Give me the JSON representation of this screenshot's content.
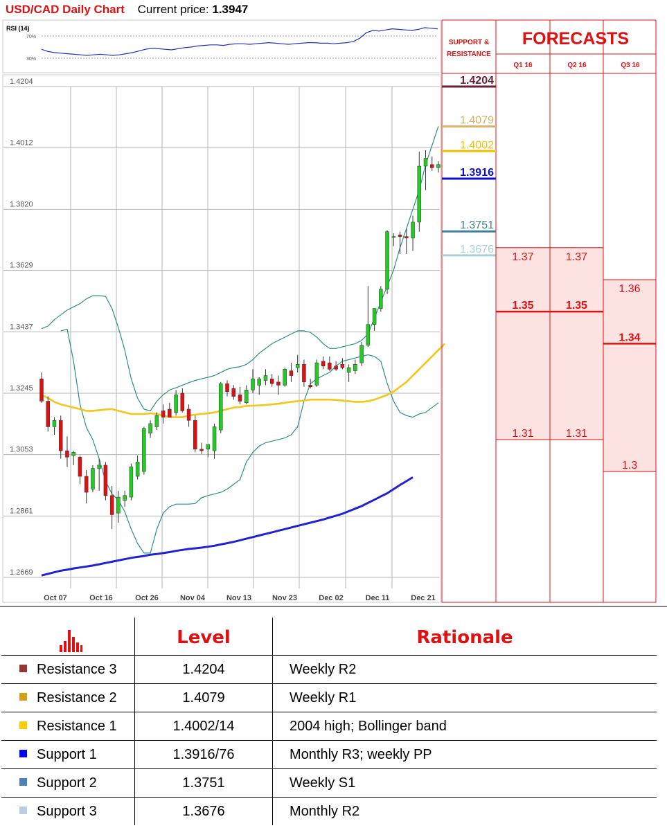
{
  "header": {
    "title": "USD/CAD Daily Chart",
    "price_label": "Current price:",
    "price_value": "1.3947"
  },
  "rsi": {
    "label": "RSI (14)",
    "level_high": "70%",
    "level_low": "30%"
  },
  "panel": {
    "support_resistance_title": [
      "SUPPORT &",
      "RESISTANCE"
    ],
    "forecasts_title": "FORECASTS",
    "quarters": [
      "Q1 16",
      "Q2 16",
      "Q3 16"
    ],
    "levels": [
      {
        "value": "1.4204",
        "color": "#6b1e3a"
      },
      {
        "value": "1.4079",
        "color": "#d9b264"
      },
      {
        "value": "1.4002",
        "color": "#f5c000"
      },
      {
        "value": "1.3916",
        "color": "#1010c8"
      },
      {
        "value": "1.3751",
        "color": "#3b8096"
      },
      {
        "value": "1.3676",
        "color": "#aad0d8"
      }
    ],
    "forecasts": [
      {
        "quarter": "Q1 16",
        "high": "1.37",
        "mid": "1.35",
        "low": "1.31"
      },
      {
        "quarter": "Q2 16",
        "high": "1.37",
        "mid": "1.35",
        "low": "1.31"
      },
      {
        "quarter": "Q3 16",
        "high": "1.36",
        "mid": "1.34",
        "low": "1.3"
      }
    ]
  },
  "chart_data": {
    "type": "candlestick",
    "title": "USD/CAD Daily Chart",
    "x_tick_labels": [
      "Oct 07",
      "Oct 16",
      "Oct 26",
      "Nov 04",
      "Nov 13",
      "Nov 23",
      "Dec 02",
      "Dec 11",
      "Dec 21"
    ],
    "y_tick_labels": [
      "1.4204",
      "1.4012",
      "1.3820",
      "1.3629",
      "1.3437",
      "1.3245",
      "1.3053",
      "1.2861",
      "1.2669"
    ],
    "ylim": [
      1.2669,
      1.4204
    ],
    "candles": [
      [
        1.329,
        1.331,
        1.3215,
        1.322
      ],
      [
        1.322,
        1.3235,
        1.3125,
        1.314
      ],
      [
        1.314,
        1.317,
        1.3115,
        1.316
      ],
      [
        1.316,
        1.3175,
        1.304,
        1.3065
      ],
      [
        1.3065,
        1.311,
        1.3015,
        1.3045
      ],
      [
        1.305,
        1.3065,
        1.302,
        1.306
      ],
      [
        1.3045,
        1.305,
        1.296,
        1.2985
      ],
      [
        1.2985,
        1.3005,
        1.29,
        1.2935
      ],
      [
        1.2945,
        1.302,
        1.2935,
        1.301
      ],
      [
        1.301,
        1.304,
        1.294,
        1.302
      ],
      [
        1.302,
        1.303,
        1.291,
        1.2925
      ],
      [
        1.2925,
        1.2955,
        1.282,
        1.2865
      ],
      [
        1.287,
        1.294,
        1.284,
        1.292
      ],
      [
        1.291,
        1.294,
        1.289,
        1.2925
      ],
      [
        1.292,
        1.3025,
        1.291,
        1.3015
      ],
      [
        1.2985,
        1.305,
        1.2975,
        1.303
      ],
      [
        1.3,
        1.314,
        1.299,
        1.3135
      ],
      [
        1.312,
        1.316,
        1.3105,
        1.315
      ],
      [
        1.314,
        1.3185,
        1.313,
        1.3175
      ],
      [
        1.319,
        1.321,
        1.315,
        1.317
      ],
      [
        1.3195,
        1.3215,
        1.317,
        1.317
      ],
      [
        1.3185,
        1.3255,
        1.3175,
        1.324
      ],
      [
        1.3245,
        1.326,
        1.3185,
        1.319
      ],
      [
        1.3195,
        1.321,
        1.314,
        1.316
      ],
      [
        1.316,
        1.3175,
        1.306,
        1.307
      ],
      [
        1.307,
        1.309,
        1.3055,
        1.3065
      ],
      [
        1.307,
        1.3085,
        1.3045,
        1.3085
      ],
      [
        1.3065,
        1.315,
        1.304,
        1.314
      ],
      [
        1.313,
        1.328,
        1.312,
        1.3275
      ],
      [
        1.3275,
        1.3285,
        1.3235,
        1.325
      ],
      [
        1.326,
        1.327,
        1.3225,
        1.3235
      ],
      [
        1.324,
        1.3265,
        1.321,
        1.322
      ],
      [
        1.3215,
        1.327,
        1.321,
        1.3255
      ],
      [
        1.3255,
        1.332,
        1.3245,
        1.329
      ],
      [
        1.327,
        1.3295,
        1.324,
        1.329
      ],
      [
        1.3285,
        1.332,
        1.327,
        1.33
      ],
      [
        1.329,
        1.3305,
        1.3265,
        1.3275
      ],
      [
        1.328,
        1.33,
        1.324,
        1.327
      ],
      [
        1.327,
        1.3325,
        1.3265,
        1.332
      ],
      [
        1.3315,
        1.334,
        1.328,
        1.33
      ],
      [
        1.3325,
        1.3365,
        1.331,
        1.3335
      ],
      [
        1.3335,
        1.335,
        1.3265,
        1.328
      ],
      [
        1.327,
        1.329,
        1.326,
        1.3265
      ],
      [
        1.327,
        1.335,
        1.3265,
        1.334
      ],
      [
        1.3345,
        1.336,
        1.332,
        1.333
      ],
      [
        1.334,
        1.336,
        1.3315,
        1.332
      ],
      [
        1.333,
        1.3345,
        1.3315,
        1.332
      ],
      [
        1.3335,
        1.3355,
        1.332,
        1.3325
      ],
      [
        1.331,
        1.3335,
        1.328,
        1.3325
      ],
      [
        1.3315,
        1.335,
        1.3305,
        1.3335
      ],
      [
        1.334,
        1.3405,
        1.333,
        1.3395
      ],
      [
        1.3395,
        1.358,
        1.339,
        1.346
      ],
      [
        1.346,
        1.351,
        1.344,
        1.351
      ],
      [
        1.351,
        1.358,
        1.35,
        1.357
      ],
      [
        1.357,
        1.3755,
        1.3555,
        1.375
      ],
      [
        1.3735,
        1.3745,
        1.3705,
        1.3735
      ],
      [
        1.374,
        1.375,
        1.368,
        1.3735
      ],
      [
        1.3735,
        1.376,
        1.368,
        1.373
      ],
      [
        1.373,
        1.38,
        1.369,
        1.378
      ],
      [
        1.378,
        1.4,
        1.375,
        1.3955
      ],
      [
        1.3955,
        1.4005,
        1.388,
        1.398
      ],
      [
        1.396,
        1.3985,
        1.394,
        1.395
      ],
      [
        1.395,
        1.397,
        1.3935,
        1.396
      ]
    ],
    "series": [
      {
        "values": [
          1.3447,
          1.3455,
          1.3475,
          1.349,
          1.3505,
          1.3515,
          1.3525,
          1.354,
          1.355,
          1.355,
          1.3548,
          1.351,
          1.345,
          1.338,
          1.329,
          1.323,
          1.3195,
          1.319,
          1.322,
          1.324,
          1.3255,
          1.3262,
          1.327,
          1.3278,
          1.3285,
          1.329,
          1.3295,
          1.33,
          1.331,
          1.332,
          1.3325,
          1.3328,
          1.3335,
          1.335,
          1.337,
          1.3385,
          1.34,
          1.341,
          1.342,
          1.343,
          1.344,
          1.344,
          1.3435,
          1.342,
          1.34,
          1.3385,
          1.3385,
          1.339,
          1.3395,
          1.34,
          1.341,
          1.343,
          1.348,
          1.353,
          1.358,
          1.363,
          1.37,
          1.376,
          1.382,
          1.388,
          1.396,
          1.402,
          1.408
        ]
      },
      {
        "values": [
          1.344,
          1.3445,
          1.3345,
          1.321,
          1.3138,
          1.31,
          1.304,
          1.297,
          1.293,
          1.291,
          1.2875,
          1.282,
          1.2775,
          1.2745,
          1.2745,
          1.282,
          1.287,
          1.289,
          1.2898,
          1.2898,
          1.2898,
          1.29,
          1.2918,
          1.2925,
          1.293,
          1.2935,
          1.2945,
          1.296,
          1.2975,
          1.303,
          1.306,
          1.308,
          1.309,
          1.3095,
          1.31,
          1.3105,
          1.3115,
          1.314,
          1.322,
          1.3275,
          1.329,
          1.33,
          1.331,
          1.333,
          1.3345,
          1.335,
          1.3355,
          1.336,
          1.3365,
          1.336,
          1.3345,
          1.3275,
          1.322,
          1.3185,
          1.3175,
          1.317,
          1.318,
          1.3185,
          1.32,
          1.3215
        ]
      },
      {
        "values": [
          1.324,
          1.323,
          1.3218,
          1.321,
          1.3205,
          1.32,
          1.3195,
          1.319,
          1.319,
          1.3192,
          1.3194,
          1.3195,
          1.319,
          1.3185,
          1.318,
          1.318,
          1.318,
          1.3182,
          1.318,
          1.3175,
          1.317,
          1.317,
          1.317,
          1.3175,
          1.3178,
          1.318,
          1.3182,
          1.3185,
          1.319,
          1.3195,
          1.32,
          1.3202,
          1.3205,
          1.3206,
          1.3207,
          1.3208,
          1.321,
          1.3212,
          1.3215,
          1.3218,
          1.322,
          1.3222,
          1.3225,
          1.3225,
          1.3225,
          1.3225,
          1.3224,
          1.3222,
          1.322,
          1.3218,
          1.3218,
          1.322,
          1.3225,
          1.3232,
          1.324,
          1.325,
          1.3265,
          1.328,
          1.33,
          1.332,
          1.334,
          1.336,
          1.338,
          1.34
        ]
      },
      {
        "values": [
          1.2675,
          1.268,
          1.2685,
          1.269,
          1.2693,
          1.2697,
          1.27,
          1.2703,
          1.2706,
          1.271,
          1.2714,
          1.2718,
          1.2722,
          1.2726,
          1.273,
          1.2733,
          1.2736,
          1.274,
          1.2742,
          1.2745,
          1.2748,
          1.2752,
          1.2755,
          1.2758,
          1.276,
          1.2762,
          1.2765,
          1.2768,
          1.2772,
          1.2776,
          1.278,
          1.2785,
          1.279,
          1.2795,
          1.28,
          1.2805,
          1.281,
          1.2815,
          1.282,
          1.2825,
          1.283,
          1.2835,
          1.284,
          1.2845,
          1.285,
          1.2856,
          1.2862,
          1.2868,
          1.2876,
          1.2884,
          1.2892,
          1.2902,
          1.2912,
          1.2922,
          1.2932,
          1.2945,
          1.2958,
          1.297,
          1.2982
        ]
      }
    ],
    "rsi_values": [
      46,
      42,
      40,
      39,
      38,
      37,
      36,
      35,
      36,
      37,
      36,
      35,
      36,
      38,
      40,
      43,
      46,
      48,
      47,
      46,
      45,
      47,
      49,
      50,
      52,
      53,
      54,
      54,
      53,
      55,
      56,
      56,
      55,
      56,
      57,
      58,
      57,
      56,
      55,
      56,
      57,
      58,
      58,
      57,
      57,
      56,
      57,
      58,
      60,
      66,
      76,
      80,
      79,
      81,
      83,
      82,
      81,
      80,
      82,
      85,
      84,
      83
    ]
  },
  "table": {
    "headers": [
      "Level",
      "Rationale"
    ],
    "rows": [
      {
        "name": "Resistance 3",
        "level": "1.4204",
        "rationale": "Weekly R2",
        "color": "#953735"
      },
      {
        "name": "Resistance 2",
        "level": "1.4079",
        "rationale": "Weekly R1",
        "color": "#d4a017"
      },
      {
        "name": "Resistance 1",
        "level": "1.4002/14",
        "rationale": "2004 high; Bollinger band",
        "color": "#ffcc00"
      },
      {
        "name": "Support 1",
        "level": "1.3916/76",
        "rationale": "Monthly R3; weekly PP",
        "color": "#0000ff"
      },
      {
        "name": "Support 2",
        "level": "1.3751",
        "rationale": "Weekly S1",
        "color": "#4f81bd"
      },
      {
        "name": "Support 3",
        "level": "1.3676",
        "rationale": "Monthly R2",
        "color": "#b9cde5"
      }
    ]
  }
}
